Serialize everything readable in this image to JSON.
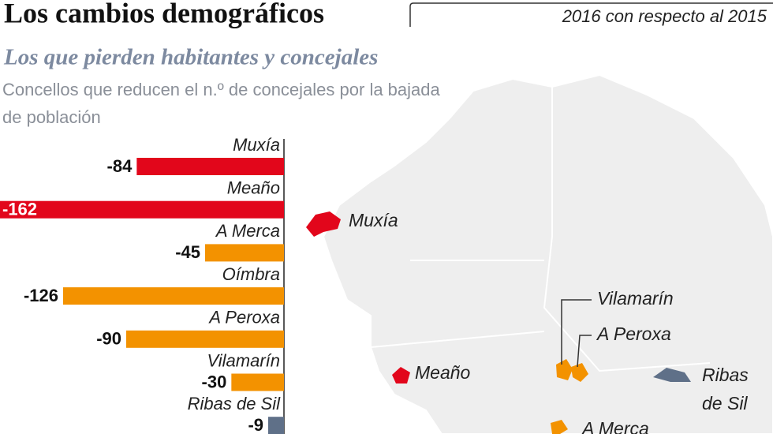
{
  "header": {
    "title": "Los cambios demográficos",
    "note": "2016 con respecto al 2015",
    "subtitle": "Los que pierden habitantes y concejales",
    "description": "Concellos que reducen el n.º de concejales por la bajada de población"
  },
  "chart_data": {
    "type": "bar",
    "orientation": "horizontal",
    "categories": [
      "Muxía",
      "Meaño",
      "A Merca",
      "Oímbra",
      "A Peroxa",
      "Vilamarín",
      "Ribas de Sil"
    ],
    "values": [
      -84,
      -162,
      -45,
      -126,
      -90,
      -30,
      -9
    ],
    "colors": [
      "#e2061b",
      "#e2061b",
      "#f39200",
      "#f39200",
      "#f39200",
      "#f39200",
      "#5f7088"
    ],
    "xlim": [
      -162,
      0
    ]
  },
  "map": {
    "labels": [
      "Muxía",
      "Meaño",
      "Vilamarín",
      "A Peroxa",
      [
        "Ribas",
        "de Sil"
      ],
      "A Merca"
    ]
  }
}
